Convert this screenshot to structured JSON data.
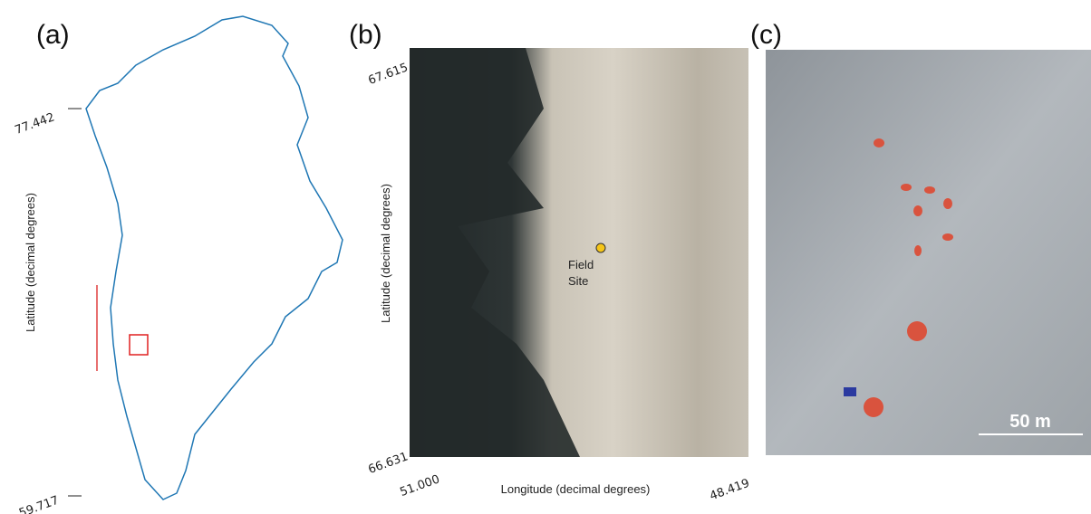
{
  "panels": [
    {
      "label": "(a)",
      "y_axis_label": "Latitude (decimal degrees)",
      "lat_ticks": [
        "77.442",
        "59.717"
      ]
    },
    {
      "label": "(b)",
      "y_axis_label": "Latitude (decimal degrees)",
      "lat_ticks": [
        "67.615",
        "66.631"
      ],
      "lon_ticks": [
        "51.000",
        "48.419"
      ],
      "x_axis_label": "Longitude (decimal degrees)",
      "annotation": [
        "Field",
        "Site"
      ]
    },
    {
      "label": "(c)",
      "scale_bar": "50 m"
    }
  ]
}
